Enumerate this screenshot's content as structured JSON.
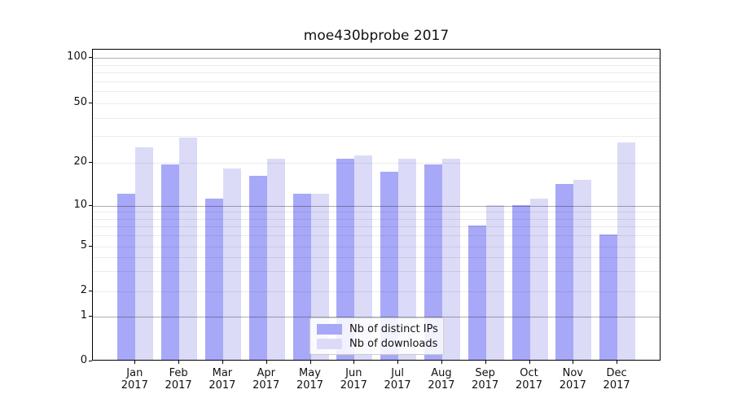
{
  "title": "moe430bprobe 2017",
  "chart_data": {
    "type": "bar",
    "title": "moe430bprobe 2017",
    "categories": [
      "Jan 2017",
      "Feb 2017",
      "Mar 2017",
      "Apr 2017",
      "May 2017",
      "Jun 2017",
      "Jul 2017",
      "Aug 2017",
      "Sep 2017",
      "Oct 2017",
      "Nov 2017",
      "Dec 2017"
    ],
    "series": [
      {
        "name": "Nb of distinct IPs",
        "color": "#a8a8f8",
        "values": [
          12,
          19,
          11,
          16,
          12,
          21,
          17,
          19,
          7,
          10,
          14,
          6
        ]
      },
      {
        "name": "Nb of downloads",
        "color": "#dbdbf8",
        "values": [
          25,
          29,
          18,
          21,
          12,
          22,
          21,
          21,
          10,
          11,
          15,
          27
        ]
      }
    ],
    "y_scale": "symlog",
    "ylim": [
      0,
      100
    ],
    "y_ticks": [
      0,
      1,
      2,
      5,
      10,
      20,
      50,
      100
    ],
    "y_minor_gridlines": [
      3,
      4,
      6,
      7,
      8,
      9,
      30,
      40,
      60,
      70,
      80,
      90
    ],
    "y_major_gridlines": [
      1,
      10,
      100
    ],
    "grid": true,
    "legend_position": "lower center inside",
    "colors": {
      "series_dark": "#a8a8f8",
      "series_light": "#dbdbf8",
      "major_gridline": "#b0b0b0",
      "minor_gridline": "#e9e9e9",
      "axis": "#000000",
      "text": "#111111",
      "legend_border": "#cccccc",
      "legend_bg": "rgba(255,255,255,0.85)"
    }
  }
}
